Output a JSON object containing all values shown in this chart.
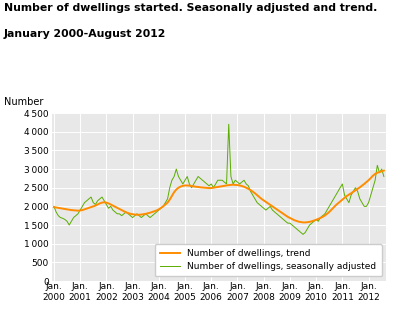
{
  "title_line1": "Number of dwellings started. Seasonally adjusted and trend.",
  "title_line2": "January 2000-August 2012",
  "ylabel": "Number",
  "ylim": [
    0,
    4500
  ],
  "yticks": [
    0,
    500,
    1000,
    1500,
    2000,
    2500,
    3000,
    3500,
    4000,
    4500
  ],
  "background_color": "#e8e8e8",
  "plot_bg_color": "#e8e8e8",
  "trend_color": "#ff8c00",
  "sa_color": "#5aad00",
  "legend_trend": "Number of dwellings, trend",
  "legend_sa": "Number of dwellings, seasonally adjusted",
  "xtick_labels": [
    "Jan.\n2000",
    "Jan.\n2001",
    "Jan.\n2002",
    "Jan.\n2003",
    "Jan.\n2004",
    "Jan.\n2005",
    "Jan.\n2006",
    "Jan.\n2007",
    "Jan.\n2008",
    "Jan.\n2009",
    "Jan.\n2010",
    "Jan.\n2011",
    "Jan.\n2012"
  ],
  "n_months": 152,
  "trend_data": [
    1980,
    1970,
    1960,
    1950,
    1940,
    1930,
    1920,
    1910,
    1900,
    1895,
    1890,
    1885,
    1890,
    1900,
    1920,
    1940,
    1960,
    1980,
    2000,
    2020,
    2050,
    2080,
    2100,
    2110,
    2100,
    2080,
    2050,
    2020,
    1990,
    1960,
    1930,
    1900,
    1870,
    1840,
    1820,
    1800,
    1790,
    1780,
    1775,
    1775,
    1780,
    1790,
    1800,
    1815,
    1830,
    1850,
    1870,
    1890,
    1920,
    1960,
    2000,
    2050,
    2100,
    2180,
    2280,
    2380,
    2450,
    2500,
    2530,
    2550,
    2560,
    2560,
    2555,
    2545,
    2535,
    2525,
    2520,
    2510,
    2505,
    2500,
    2495,
    2490,
    2490,
    2500,
    2510,
    2520,
    2530,
    2540,
    2550,
    2560,
    2570,
    2575,
    2580,
    2575,
    2570,
    2560,
    2545,
    2525,
    2500,
    2470,
    2435,
    2395,
    2350,
    2300,
    2250,
    2200,
    2160,
    2120,
    2080,
    2040,
    2000,
    1960,
    1920,
    1880,
    1840,
    1800,
    1760,
    1720,
    1690,
    1660,
    1630,
    1610,
    1590,
    1580,
    1570,
    1570,
    1575,
    1585,
    1600,
    1620,
    1640,
    1665,
    1690,
    1720,
    1755,
    1800,
    1850,
    1910,
    1970,
    2030,
    2080,
    2130,
    2180,
    2230,
    2275,
    2315,
    2350,
    2390,
    2430,
    2470,
    2510,
    2555,
    2600,
    2650,
    2700,
    2760,
    2820,
    2870,
    2900,
    2920,
    2940,
    2960
  ],
  "sa_data": [
    2000,
    1850,
    1750,
    1700,
    1680,
    1650,
    1600,
    1500,
    1600,
    1700,
    1750,
    1800,
    1900,
    2000,
    2100,
    2150,
    2200,
    2250,
    2100,
    2050,
    2150,
    2200,
    2250,
    2150,
    2050,
    1950,
    2000,
    1900,
    1850,
    1800,
    1800,
    1750,
    1800,
    1850,
    1800,
    1750,
    1700,
    1750,
    1800,
    1750,
    1700,
    1750,
    1800,
    1750,
    1700,
    1750,
    1800,
    1850,
    1900,
    1950,
    2000,
    2100,
    2200,
    2500,
    2700,
    2800,
    3000,
    2800,
    2700,
    2600,
    2700,
    2800,
    2600,
    2500,
    2600,
    2700,
    2800,
    2750,
    2700,
    2650,
    2600,
    2550,
    2600,
    2500,
    2600,
    2700,
    2700,
    2700,
    2650,
    2600,
    4200,
    2800,
    2600,
    2700,
    2650,
    2600,
    2650,
    2700,
    2600,
    2550,
    2400,
    2300,
    2200,
    2100,
    2050,
    2000,
    1950,
    1900,
    1950,
    2000,
    1900,
    1850,
    1800,
    1750,
    1700,
    1650,
    1600,
    1550,
    1550,
    1500,
    1450,
    1400,
    1350,
    1300,
    1250,
    1300,
    1400,
    1500,
    1550,
    1600,
    1650,
    1600,
    1700,
    1750,
    1800,
    1900,
    2000,
    2100,
    2200,
    2300,
    2400,
    2500,
    2600,
    2300,
    2200,
    2100,
    2300,
    2400,
    2500,
    2400,
    2200,
    2100,
    2000,
    2000,
    2100,
    2300,
    2500,
    2700,
    3100,
    2900,
    3000,
    2800
  ]
}
